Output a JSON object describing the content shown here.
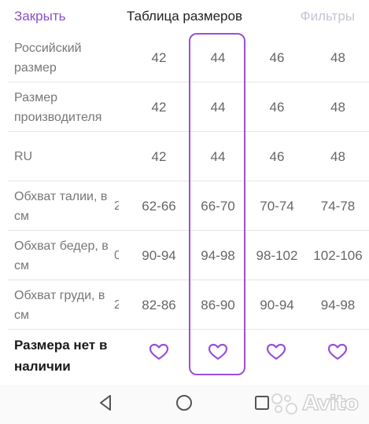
{
  "header": {
    "close_label": "Закрыть",
    "title": "Таблица размеров",
    "filters_label": "Фильтры"
  },
  "accent_color": "#9a4fd6",
  "selected_column": 2,
  "rows": [
    {
      "label": "Российский размер",
      "cut": "",
      "values": [
        "42",
        "44",
        "46",
        "48"
      ]
    },
    {
      "label": "Размер производителя",
      "cut": "",
      "values": [
        "42",
        "44",
        "46",
        "48"
      ]
    },
    {
      "label": "RU",
      "cut": "",
      "values": [
        "42",
        "44",
        "46",
        "48"
      ]
    },
    {
      "label": "Обхват талии, в см",
      "cut": "2",
      "values": [
        "62-66",
        "66-70",
        "70-74",
        "74-78"
      ]
    },
    {
      "label": "Обхват бедер, в см",
      "cut": "0",
      "values": [
        "90-94",
        "94-98",
        "98-102",
        "102-106"
      ]
    },
    {
      "label": "Обхват груди, в см",
      "cut": "2",
      "values": [
        "82-86",
        "86-90",
        "90-94",
        "94-98"
      ]
    }
  ],
  "availability": {
    "label": "Размера нет в наличии",
    "icon": "heart-outline-icon"
  },
  "navbar": {
    "back_icon": "back-triangle-icon",
    "home_icon": "home-circle-icon",
    "recents_icon": "recents-square-icon"
  },
  "watermark": {
    "text": "Avito"
  }
}
